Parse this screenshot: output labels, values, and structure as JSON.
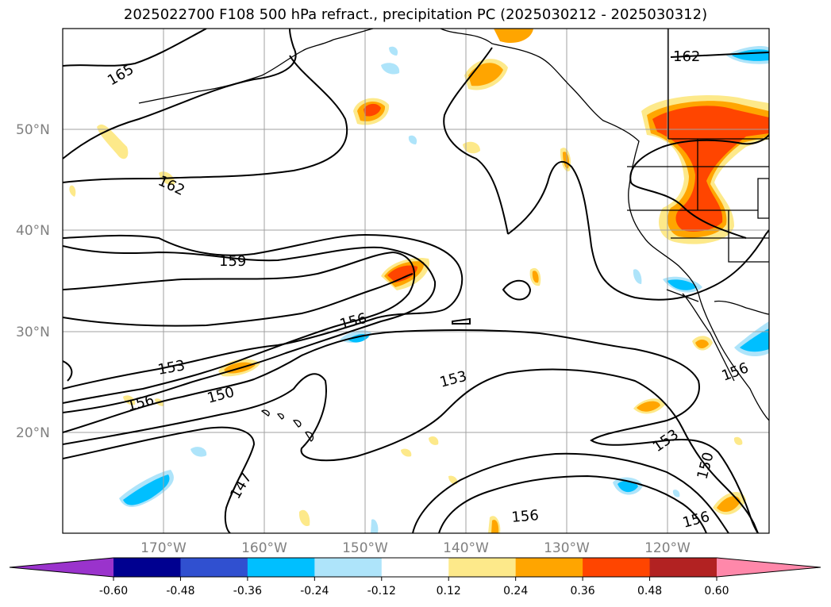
{
  "title": "2025022700 F108 500 hPa refract., precipitation PC (2025030212 - 2025030312)",
  "lat_labels": [
    "50°N",
    "40°N",
    "30°N",
    "20°N"
  ],
  "lon_labels": [
    "170°W",
    "160°W",
    "150°W",
    "140°W",
    "130°W",
    "120°W"
  ],
  "contour_labels": [
    "165",
    "162",
    "162",
    "159",
    "156",
    "156",
    "156",
    "156",
    "153",
    "153",
    "153",
    "150",
    "150",
    "147",
    "156"
  ],
  "colorbar": {
    "ticks": [
      "-0.60",
      "-0.48",
      "-0.36",
      "-0.24",
      "-0.12",
      "0.12",
      "0.24",
      "0.36",
      "0.48",
      "0.60"
    ],
    "colors": [
      "#9a33cc",
      "#000090",
      "#3050d0",
      "#00bfff",
      "#aee4fa",
      "#ffffff",
      "#fde98a",
      "#ffa500",
      "#ff4500",
      "#b22222",
      "#ff88aa"
    ]
  }
}
